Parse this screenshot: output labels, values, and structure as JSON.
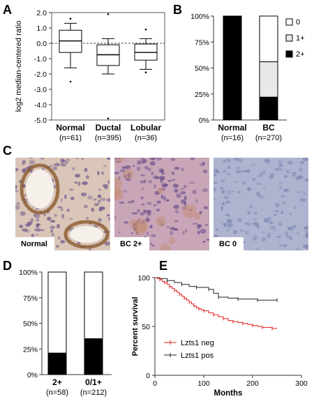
{
  "panels": {
    "A": "A",
    "B": "B",
    "C": "C",
    "D": "D",
    "E": "E"
  },
  "panel_c": {
    "images": [
      {
        "label": "Normal",
        "tint": "#d9c6b8"
      },
      {
        "label": "BC 2+",
        "tint": "#c8a6b8"
      },
      {
        "label": "BC 0",
        "tint": "#aeb4cf"
      }
    ]
  },
  "chart_data": [
    {
      "panel": "A",
      "type": "boxplot",
      "ylabel": "log2 median-centered ratio",
      "ylim": [
        -5.0,
        2.0
      ],
      "yticks": [
        "2.0",
        "1.0",
        "0.0",
        "-1.0",
        "-2.0",
        "-3.0",
        "-4.0",
        "-5.0"
      ],
      "reference_line": 0,
      "categories": [
        "Normal",
        "Ductal",
        "Lobular"
      ],
      "sample_sizes": [
        "(n=61)",
        "(n=395)",
        "(n=36)"
      ],
      "boxes": [
        {
          "min": -1.6,
          "q1": -0.6,
          "median": 0.15,
          "q3": 0.85,
          "max": 1.3,
          "outliers": [
            1.6,
            -2.5
          ]
        },
        {
          "min": -2.0,
          "q1": -1.45,
          "median": -0.75,
          "q3": -0.1,
          "max": 0.3,
          "outliers": [
            1.9,
            -4.9
          ]
        },
        {
          "min": -1.7,
          "q1": -1.1,
          "median": -0.6,
          "q3": -0.05,
          "max": 0.3,
          "outliers": [
            0.9,
            -1.9
          ]
        }
      ]
    },
    {
      "panel": "B",
      "type": "bar",
      "stacked": true,
      "yticks": [
        "100%",
        "75%",
        "50%",
        "25%",
        "0%"
      ],
      "ylim": [
        0,
        100
      ],
      "categories": [
        "Normal",
        "BC"
      ],
      "sample_sizes": [
        "(n=16)",
        "(n=270)"
      ],
      "legend": [
        "0",
        "1+",
        "2+"
      ],
      "legend_colors": [
        "#ffffff",
        "#e8e8e8",
        "#000000"
      ],
      "series": [
        {
          "name": "2+",
          "values": [
            100,
            22
          ]
        },
        {
          "name": "1+",
          "values": [
            0,
            34
          ]
        },
        {
          "name": "0",
          "values": [
            0,
            44
          ]
        }
      ]
    },
    {
      "panel": "D",
      "type": "bar",
      "stacked": true,
      "yticks": [
        "100%",
        "75%",
        "50%",
        "25%",
        "0%"
      ],
      "ylim": [
        0,
        100
      ],
      "categories": [
        "2+",
        "0/1+"
      ],
      "sample_sizes": [
        "(n=58)",
        "(n=212)"
      ],
      "series_colors": [
        "#000000",
        "#ffffff"
      ],
      "series": [
        {
          "values": [
            21,
            35
          ]
        },
        {
          "values": [
            79,
            65
          ]
        }
      ]
    },
    {
      "panel": "E",
      "type": "line",
      "xlabel": "Months",
      "ylabel": "Percent survival",
      "xlim": [
        0,
        300
      ],
      "ylim": [
        0,
        100
      ],
      "xticks": [
        "0",
        "100",
        "200",
        "300"
      ],
      "yticks": [
        "100",
        "50",
        "0"
      ],
      "series": [
        {
          "name": "Lzts1 neg",
          "color": "#e31a1c",
          "x": [
            0,
            5,
            10,
            15,
            20,
            25,
            30,
            35,
            40,
            45,
            50,
            55,
            60,
            65,
            70,
            75,
            80,
            85,
            90,
            95,
            100,
            110,
            120,
            130,
            140,
            150,
            160,
            170,
            180,
            190,
            200,
            210,
            220,
            230,
            240,
            250
          ],
          "y": [
            100,
            99,
            98,
            96,
            95,
            93,
            91,
            89,
            87,
            85,
            83,
            81,
            79,
            77,
            75,
            73,
            71,
            69,
            68,
            67,
            66,
            64,
            62,
            60,
            58,
            56,
            55,
            54,
            53,
            52,
            51,
            50,
            49,
            49,
            48,
            48
          ]
        },
        {
          "name": "Lzts1 pos",
          "color": "#222222",
          "x": [
            0,
            10,
            25,
            40,
            55,
            70,
            85,
            100,
            110,
            120,
            130,
            150,
            170,
            190,
            210,
            230,
            250
          ],
          "y": [
            100,
            99,
            97,
            95,
            93,
            91,
            90,
            90,
            88,
            84,
            80,
            79,
            78,
            78,
            77,
            77,
            77
          ]
        }
      ]
    }
  ]
}
